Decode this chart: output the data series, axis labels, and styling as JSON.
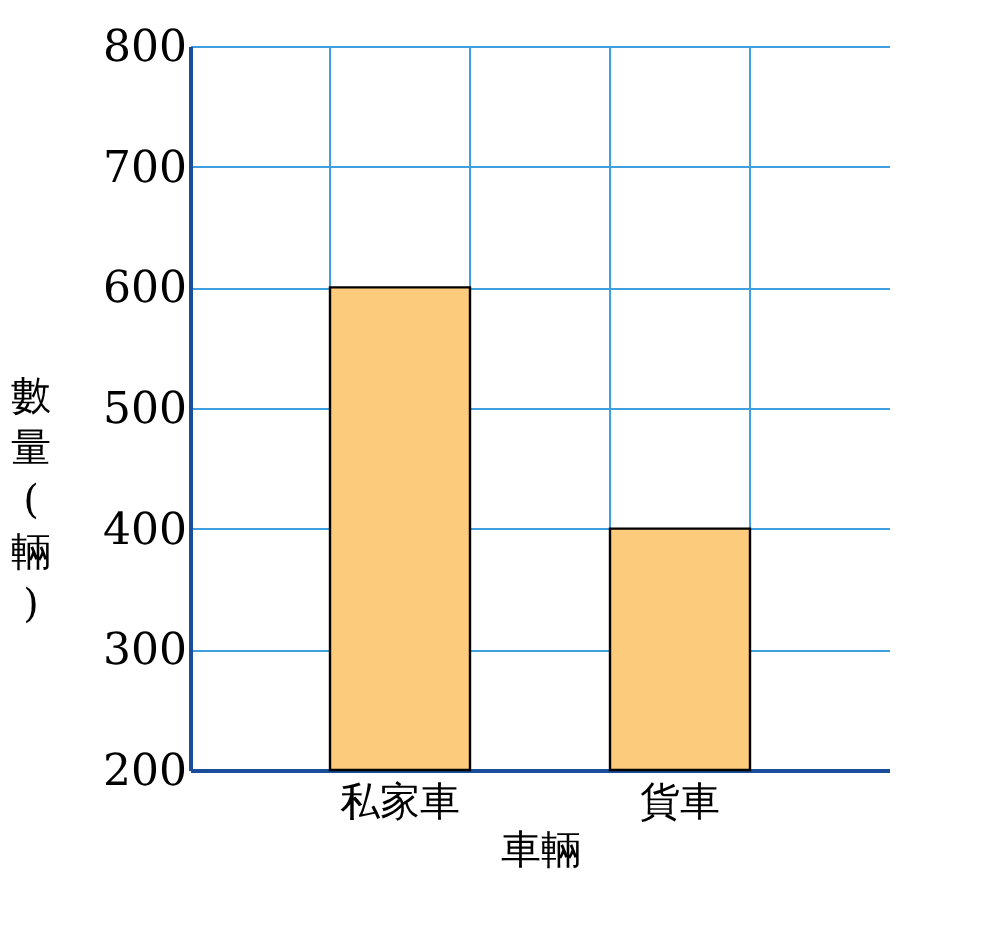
{
  "chart_data": {
    "type": "bar",
    "xlabel": "車輛",
    "ylabel": "數量(輛)",
    "categories": [
      null,
      "私家車",
      null,
      "貨車",
      null
    ],
    "values": [
      null,
      600,
      null,
      400,
      null
    ],
    "color": "#fccb7b",
    "ylim": [
      200,
      800
    ],
    "yticks": [
      200,
      300,
      400,
      500,
      600,
      700,
      800
    ],
    "grid": true
  }
}
